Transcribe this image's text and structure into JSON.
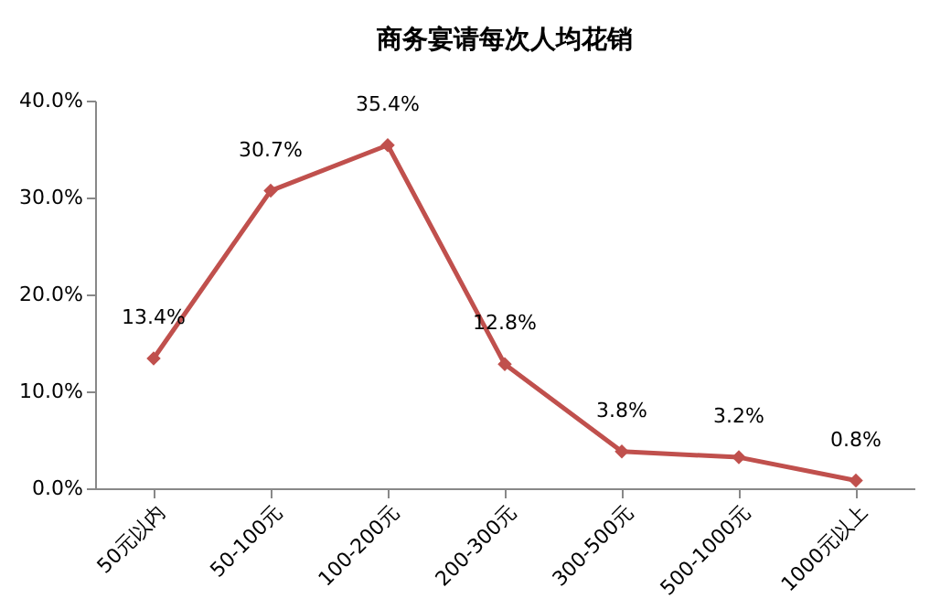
{
  "chart_data": {
    "type": "line",
    "title": "商务宴请每次人均花销",
    "categories": [
      "50元以内",
      "50-100元",
      "100-200元",
      "200-300元",
      "300-500元",
      "500-1000元",
      "1000元以上"
    ],
    "series": [
      {
        "color": "#c0504d",
        "values": [
          13.4,
          30.7,
          35.4,
          12.8,
          3.8,
          3.2,
          0.8
        ],
        "value_labels": [
          "13.4%",
          "30.7%",
          "35.4%",
          "12.8%",
          "3.8%",
          "3.2%",
          "0.8%"
        ]
      }
    ],
    "ylim": [
      0,
      40
    ],
    "yticks": [
      {
        "value": 0,
        "label": "0.0%"
      },
      {
        "value": 10,
        "label": "10.0%"
      },
      {
        "value": 20,
        "label": "20.0%"
      },
      {
        "value": 30,
        "label": "30.0%"
      },
      {
        "value": 40,
        "label": "40.0%"
      }
    ],
    "grid": false,
    "marker": "diamond",
    "line_style": "solid"
  }
}
